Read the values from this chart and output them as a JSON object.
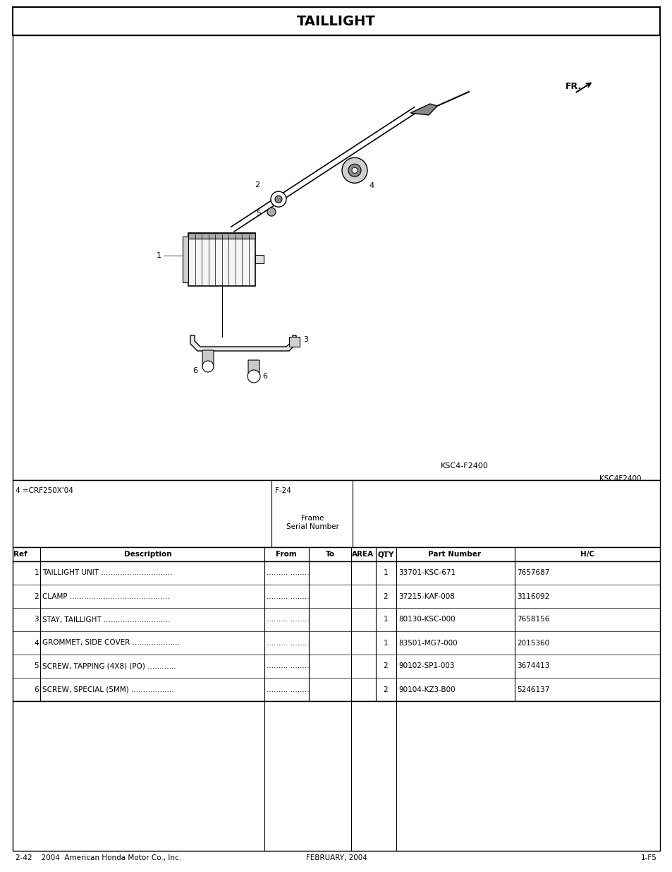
{
  "title": "TAILLIGHT",
  "page_note_left": "4 =CRF250X'04",
  "page_note_right": "F-24",
  "frame_label": "Frame\nSerial Number",
  "diagram_label1": "KSC4-F2400",
  "diagram_label2": "KSC4F2400",
  "parts": [
    {
      "ref": "1",
      "desc": "TAILLIGHT UNIT",
      "dots": 30,
      "qty": "1",
      "part": "33701-KSC-671",
      "hc": "7657687"
    },
    {
      "ref": "2",
      "desc": "CLAMP",
      "dots": 42,
      "qty": "2",
      "part": "37215-KAF-008",
      "hc": "3116092"
    },
    {
      "ref": "3",
      "desc": "STAY, TAILLIGHT",
      "dots": 28,
      "qty": "1",
      "part": "80130-KSC-000",
      "hc": "7658156"
    },
    {
      "ref": "4",
      "desc": "GROMMET, SIDE COVER",
      "dots": 20,
      "qty": "1",
      "part": "83501-MG7-000",
      "hc": "2015360"
    },
    {
      "ref": "5",
      "desc": "SCREW, TAPPING (4X8) (PO)",
      "dots": 12,
      "qty": "2",
      "part": "90102-SP1-003",
      "hc": "3674413"
    },
    {
      "ref": "6",
      "desc": "SCREW, SPECIAL (5MM)",
      "dots": 18,
      "qty": "2",
      "part": "90104-KZ3-B00",
      "hc": "5246137"
    }
  ],
  "footer_left": "2-42    2004  American Honda Motor Co., Inc.",
  "footer_center": "FEBRUARY, 2004",
  "footer_right": "1-F5"
}
